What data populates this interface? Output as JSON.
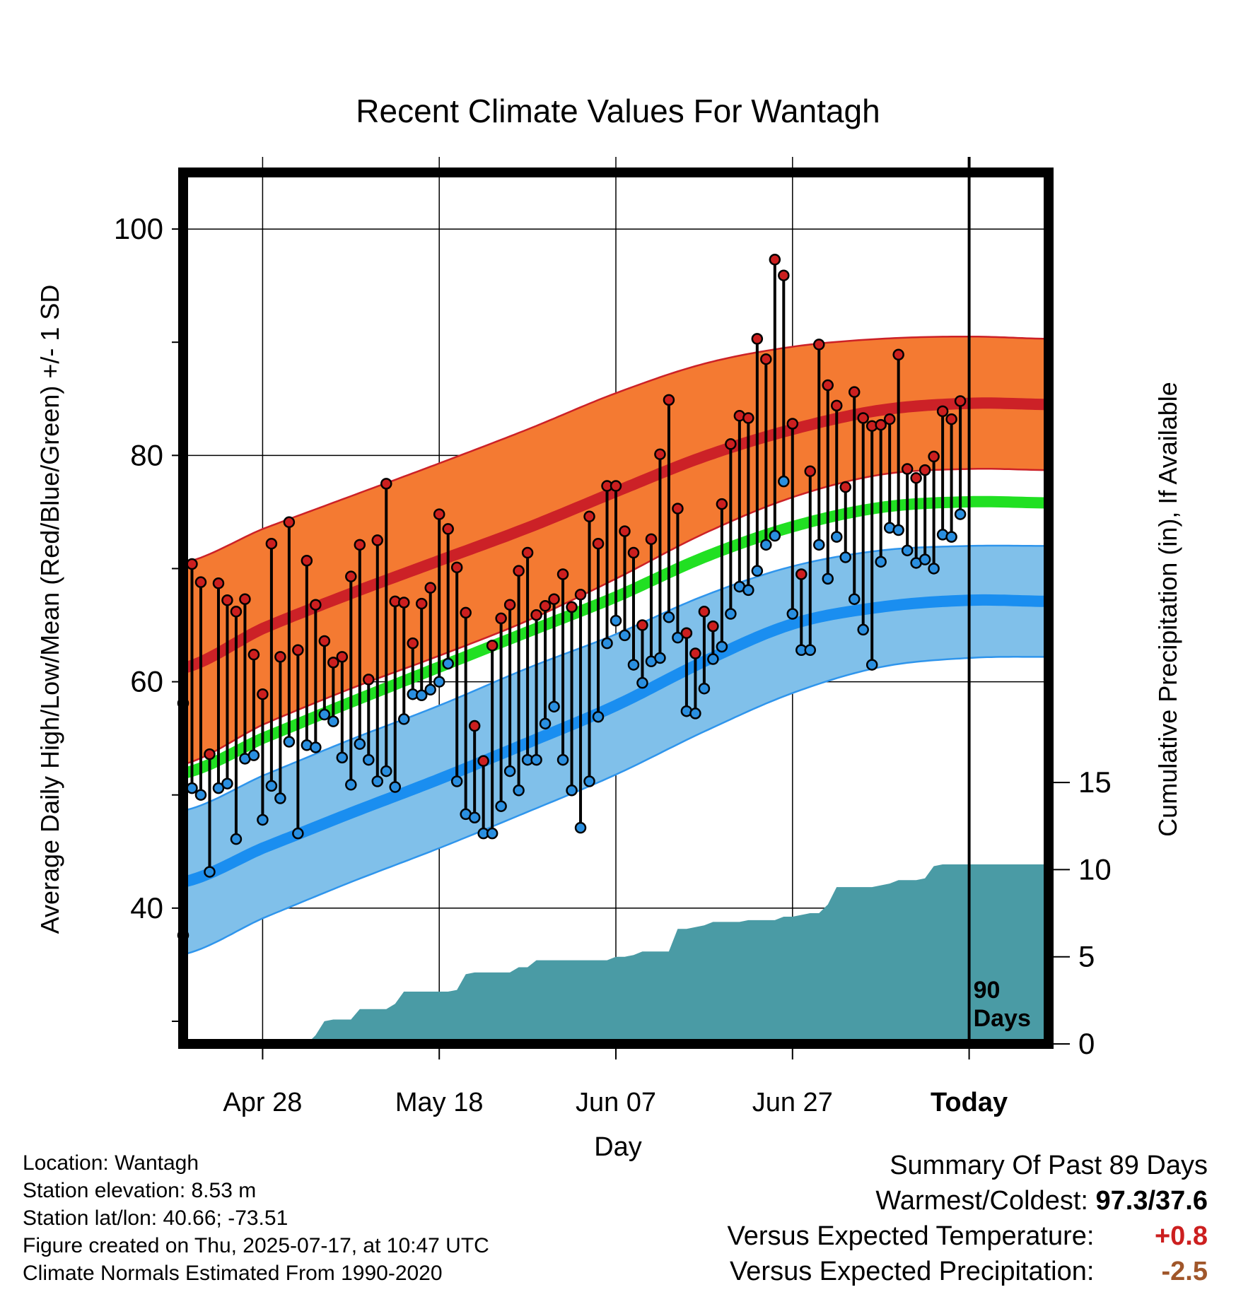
{
  "chart_data": {
    "type": "line",
    "title": "Recent Climate Values For Wantagh",
    "xlabel": "Day",
    "ylabel": "Average Daily High/Low/Mean (Red/Blue/Green) +/- 1 SD",
    "y2label": "Cumulative Precipitation (in), If Available",
    "ylim": [
      28,
      105
    ],
    "y2lim": [
      0,
      50
    ],
    "yticks": [
      100,
      80,
      60,
      40
    ],
    "yminorticks": [
      90,
      70,
      50,
      30
    ],
    "y2ticks": [
      0,
      5,
      10,
      15
    ],
    "x_range_days": [
      -89,
      0
    ],
    "x_start_date": "2025-04-18",
    "xticks": [
      {
        "day": -80,
        "label": "Apr 28"
      },
      {
        "day": -60,
        "label": "May 18"
      },
      {
        "day": -40,
        "label": "Jun 07"
      },
      {
        "day": -20,
        "label": "Jun 27"
      },
      {
        "day": 0,
        "label": "Today"
      }
    ],
    "today_label": [
      "90",
      "Days"
    ],
    "grid": true,
    "normals": {
      "days": [
        -89,
        -80,
        -70,
        -60,
        -50,
        -40,
        -30,
        -20,
        -10,
        0,
        9
      ],
      "high_mean": [
        61.2,
        64.7,
        67.8,
        70.7,
        73.6,
        76.8,
        79.9,
        82.3,
        84.0,
        84.6,
        84.5
      ],
      "high_sd_upper": [
        70.5,
        73.5,
        76.4,
        79.3,
        82.3,
        85.5,
        88.1,
        89.6,
        90.3,
        90.5,
        90.3
      ],
      "high_sd_lower": [
        52.7,
        56.2,
        59.4,
        62.3,
        65.4,
        69.1,
        73.1,
        76.3,
        78.3,
        78.8,
        78.7
      ],
      "avg_mean": [
        51.9,
        55.0,
        58.2,
        61.3,
        64.4,
        67.5,
        71.0,
        73.7,
        75.4,
        75.9,
        75.8
      ],
      "low_mean": [
        42.3,
        45.3,
        48.4,
        51.4,
        54.6,
        57.9,
        61.8,
        65.1,
        66.6,
        67.2,
        67.1
      ],
      "low_sd_upper": [
        48.6,
        51.7,
        54.9,
        57.9,
        61.2,
        64.2,
        67.6,
        70.2,
        71.6,
        72.0,
        72.0
      ],
      "low_sd_lower": [
        35.9,
        39.1,
        42.3,
        45.3,
        48.5,
        51.8,
        55.6,
        59.0,
        61.3,
        62.1,
        62.2
      ]
    },
    "series": [
      {
        "name": "High",
        "color": "#cc1f1f",
        "x": [
          -89,
          -88,
          -87,
          -86,
          -85,
          -84,
          -83,
          -82,
          -81,
          -80,
          -79,
          -78,
          -77,
          -76,
          -75,
          -74,
          -73,
          -72,
          -71,
          -70,
          -69,
          -68,
          -67,
          -66,
          -65,
          -64,
          -63,
          -62,
          -61,
          -60,
          -59,
          -58,
          -57,
          -56,
          -55,
          -54,
          -53,
          -52,
          -51,
          -50,
          -49,
          -48,
          -47,
          -46,
          -45,
          -44,
          -43,
          -42,
          -41,
          -40,
          -39,
          -38,
          -37,
          -36,
          -35,
          -34,
          -33,
          -32,
          -31,
          -30,
          -29,
          -28,
          -27,
          -26,
          -25,
          -24,
          -23,
          -22,
          -21,
          -20,
          -19,
          -18,
          -17,
          -16,
          -15,
          -14,
          -13,
          -12,
          -11,
          -10,
          -9,
          -8,
          -7,
          -6,
          -5,
          -4,
          -3,
          -2,
          -1
        ],
        "values": [
          58.1,
          70.4,
          68.8,
          53.6,
          68.7,
          67.2,
          66.2,
          67.3,
          62.4,
          58.9,
          72.2,
          62.2,
          74.1,
          62.8,
          70.7,
          66.8,
          63.6,
          61.7,
          62.2,
          69.3,
          72.1,
          60.2,
          72.5,
          77.5,
          67.1,
          67.0,
          63.4,
          66.9,
          68.3,
          74.8,
          73.5,
          70.1,
          66.1,
          56.1,
          53.0,
          63.2,
          65.6,
          66.8,
          69.8,
          71.4,
          65.9,
          66.7,
          67.3,
          69.5,
          66.6,
          67.7,
          74.6,
          72.2,
          77.3,
          77.3,
          73.3,
          71.4,
          65.0,
          72.6,
          80.1,
          84.9,
          75.3,
          64.3,
          62.5,
          66.2,
          64.9,
          75.7,
          81.0,
          83.5,
          83.3,
          90.3,
          88.5,
          97.3,
          95.9,
          82.8,
          69.5,
          78.6,
          89.8,
          86.2,
          84.4,
          77.2,
          85.6,
          83.3,
          82.6,
          82.7,
          83.2,
          88.9,
          78.8,
          78.0,
          78.7,
          79.9,
          83.9,
          83.2,
          84.8
        ]
      },
      {
        "name": "Low",
        "color": "#2a8fe0",
        "x": [
          -89,
          -88,
          -87,
          -86,
          -85,
          -84,
          -83,
          -82,
          -81,
          -80,
          -79,
          -78,
          -77,
          -76,
          -75,
          -74,
          -73,
          -72,
          -71,
          -70,
          -69,
          -68,
          -67,
          -66,
          -65,
          -64,
          -63,
          -62,
          -61,
          -60,
          -59,
          -58,
          -57,
          -56,
          -55,
          -54,
          -53,
          -52,
          -51,
          -50,
          -49,
          -48,
          -47,
          -46,
          -45,
          -44,
          -43,
          -42,
          -41,
          -40,
          -39,
          -38,
          -37,
          -36,
          -35,
          -34,
          -33,
          -32,
          -31,
          -30,
          -29,
          -28,
          -27,
          -26,
          -25,
          -24,
          -23,
          -22,
          -21,
          -20,
          -19,
          -18,
          -17,
          -16,
          -15,
          -14,
          -13,
          -12,
          -11,
          -10,
          -9,
          -8,
          -7,
          -6,
          -5,
          -4,
          -3,
          -2,
          -1
        ],
        "values": [
          37.6,
          50.6,
          50.0,
          43.2,
          50.6,
          51.0,
          46.1,
          53.2,
          53.5,
          47.8,
          50.8,
          49.7,
          54.7,
          46.6,
          54.4,
          54.2,
          57.1,
          56.5,
          53.3,
          50.9,
          54.5,
          53.1,
          51.2,
          52.1,
          50.7,
          56.7,
          58.9,
          58.8,
          59.3,
          60.0,
          61.6,
          51.2,
          48.3,
          48.0,
          46.6,
          46.6,
          49.0,
          52.1,
          50.4,
          53.1,
          53.1,
          56.3,
          57.8,
          53.1,
          50.4,
          47.1,
          51.2,
          56.9,
          63.4,
          65.4,
          64.1,
          61.5,
          59.9,
          61.8,
          62.1,
          65.7,
          63.9,
          57.4,
          57.2,
          59.4,
          62.0,
          63.1,
          66.0,
          68.4,
          68.1,
          69.8,
          72.1,
          72.9,
          77.7,
          66.0,
          62.8,
          62.8,
          72.1,
          69.1,
          72.8,
          71.0,
          67.3,
          64.6,
          61.5,
          70.6,
          73.6,
          73.4,
          71.6,
          70.5,
          70.8,
          70.0,
          73.0,
          72.8,
          74.8
        ]
      }
    ],
    "precipitation": {
      "x": [
        -89,
        -75,
        -74,
        -73,
        -72,
        -71,
        -70,
        -69,
        -68,
        -67,
        -66,
        -65,
        -64,
        -63,
        -62,
        -61,
        -60,
        -59,
        -58,
        -57,
        -56,
        -55,
        -54,
        -53,
        -52,
        -51,
        -50,
        -49,
        -48,
        -47,
        -46,
        -45,
        -44,
        -43,
        -42,
        -41,
        -40,
        -39,
        -38,
        -37,
        -36,
        -35,
        -34,
        -33,
        -32,
        -31,
        -30,
        -29,
        -28,
        -27,
        -26,
        -25,
        -24,
        -23,
        -22,
        -21,
        -20,
        -19,
        -18,
        -17,
        -16,
        -15,
        -14,
        -13,
        -12,
        -11,
        -10,
        -9,
        -8,
        -7,
        -6,
        -5,
        -4,
        -3,
        -2,
        -1,
        0,
        9
      ],
      "values": [
        0,
        0,
        0.5,
        1.3,
        1.4,
        1.4,
        1.4,
        2.0,
        2.0,
        2.0,
        2.0,
        2.3,
        3.0,
        3.0,
        3.0,
        3.0,
        3.0,
        3.0,
        3.1,
        4.0,
        4.1,
        4.1,
        4.1,
        4.1,
        4.1,
        4.4,
        4.4,
        4.8,
        4.8,
        4.8,
        4.8,
        4.8,
        4.8,
        4.8,
        4.8,
        4.8,
        5.0,
        5.0,
        5.1,
        5.3,
        5.3,
        5.3,
        5.3,
        6.6,
        6.6,
        6.7,
        6.8,
        7.0,
        7.0,
        7.0,
        7.0,
        7.1,
        7.1,
        7.1,
        7.1,
        7.3,
        7.3,
        7.4,
        7.5,
        7.5,
        8.0,
        9.0,
        9.0,
        9.0,
        9.0,
        9.0,
        9.1,
        9.2,
        9.4,
        9.4,
        9.4,
        9.5,
        10.2,
        10.3,
        10.3,
        10.3,
        10.3,
        10.3
      ],
      "color": "#4a9ba5"
    },
    "colors": {
      "high_band": "#f47a32",
      "high_line": "#cc2127",
      "mean_line": "#21e022",
      "low_band": "#80c0ea",
      "low_line": "#1a8ef0",
      "low_edge": "#2f95ec",
      "precip": "#4a9ba5"
    }
  },
  "footer": {
    "location": "Location: Wantagh",
    "elevation": "Station elevation: 8.53 m",
    "latlon": "Station lat/lon: 40.66; -73.51",
    "created": "Figure created on Thu, 2025-07-17, at 10:47 UTC",
    "normals": "Climate Normals Estimated From 1990-2020"
  },
  "summary": {
    "title": "Summary Of Past 89 Days",
    "warm_cold_label": "Warmest/Coldest:",
    "warm_cold_value": "97.3/37.6",
    "temp_label": "Versus Expected Temperature:",
    "temp_value": "+0.8",
    "temp_color": "#cc1f1f",
    "precip_label": "Versus Expected Precipitation:",
    "precip_value": "-2.5",
    "precip_color": "#a0562a"
  }
}
